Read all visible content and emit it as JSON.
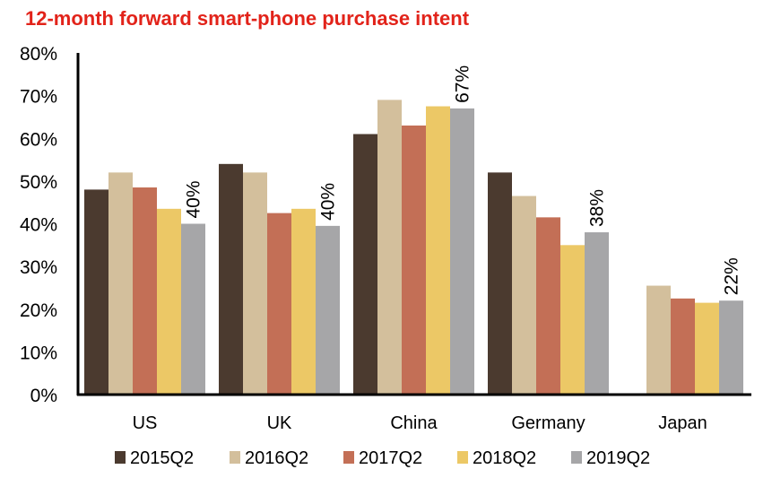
{
  "chart_data": {
    "type": "bar",
    "title": "12-month forward smart-phone purchase intent",
    "categories": [
      "US",
      "UK",
      "China",
      "Germany",
      "Japan"
    ],
    "series": [
      {
        "name": "2015Q2",
        "color": "#4b3a2f",
        "values": [
          48,
          54,
          61,
          52,
          null
        ]
      },
      {
        "name": "2016Q2",
        "color": "#d3bf9c",
        "values": [
          52,
          52,
          69,
          46.5,
          25.5
        ]
      },
      {
        "name": "2017Q2",
        "color": "#c36f56",
        "values": [
          48.5,
          42.5,
          63,
          41.5,
          22.5
        ]
      },
      {
        "name": "2018Q2",
        "color": "#ecc866",
        "values": [
          43.5,
          43.5,
          67.5,
          35,
          21.5
        ]
      },
      {
        "name": "2019Q2",
        "color": "#a6a6a8",
        "values": [
          40,
          39.5,
          67,
          38,
          22
        ]
      }
    ],
    "data_labels": [
      "40%",
      "40%",
      "67%",
      "38%",
      "22%"
    ],
    "data_label_series": "2019Q2",
    "y_ticks": [
      "0%",
      "10%",
      "20%",
      "30%",
      "40%",
      "50%",
      "60%",
      "70%",
      "80%"
    ],
    "ylim": [
      0,
      80
    ],
    "xlabel": "",
    "ylabel": "",
    "grid": false,
    "legend_position": "bottom"
  }
}
